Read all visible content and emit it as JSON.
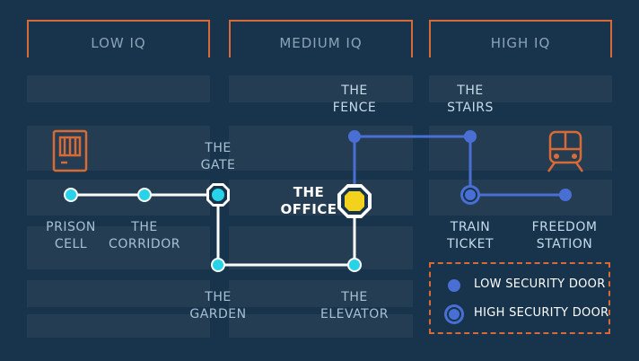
{
  "headers": [
    "LOW IQ",
    "MEDIUM IQ",
    "HIGH IQ"
  ],
  "stations": {
    "prison_cell": "PRISON\nCELL",
    "corridor": "THE\nCORRIDOR",
    "gate": "THE\nGATE",
    "garden": "THE\nGARDEN",
    "elevator": "THE\nELEVATOR",
    "office": "THE\nOFFICE",
    "fence": "THE\nFENCE",
    "stairs": "THE\nSTAIRS",
    "train_ticket": "TRAIN\nTICKET",
    "freedom_station": "FREEDOM\nSTATION"
  },
  "legend": {
    "low": "LOW SECURITY DOOR",
    "high": "HIGH SECURITY DOOR"
  },
  "colors": {
    "background": "#17344c",
    "accent": "#d86a36",
    "cyan_dot": "#27d3e8",
    "blue_dot": "#4a6fd4",
    "blue_line": "#4a6fd4",
    "white_line": "#ffffff",
    "office_yellow": "#f2d21c"
  },
  "icons": [
    "prison-door-icon",
    "train-icon"
  ]
}
